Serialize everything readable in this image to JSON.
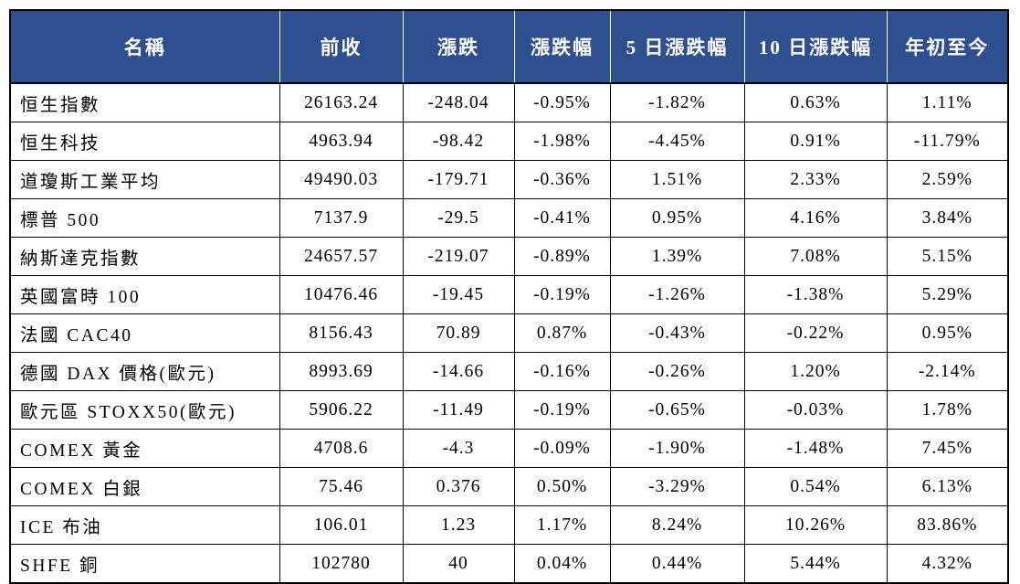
{
  "colors": {
    "header_bg": "#2F5090",
    "header_text": "#FFFFFF",
    "body_text": "#000000",
    "grid_border": "#000000",
    "header_divider": "#FFFFFF"
  },
  "table": {
    "columns": [
      {
        "key": "name",
        "label": "名稱"
      },
      {
        "key": "prev-close",
        "label": "前收"
      },
      {
        "key": "change",
        "label": "漲跌"
      },
      {
        "key": "change-pct",
        "label": "漲跌幅"
      },
      {
        "key": "pct-5d",
        "label": "5 日漲跌幅"
      },
      {
        "key": "pct-10d",
        "label": "10 日漲跌幅"
      },
      {
        "key": "ytd",
        "label": "年初至今"
      }
    ],
    "rows": [
      {
        "cells": [
          "恒生指數",
          "26163.24",
          "-248.04",
          "-0.95%",
          "-1.82%",
          "0.63%",
          "1.11%"
        ]
      },
      {
        "cells": [
          "恒生科技",
          "4963.94",
          "-98.42",
          "-1.98%",
          "-4.45%",
          "0.91%",
          "-11.79%"
        ]
      },
      {
        "cells": [
          "道瓊斯工業平均",
          "49490.03",
          "-179.71",
          "-0.36%",
          "1.51%",
          "2.33%",
          "2.59%"
        ]
      },
      {
        "cells": [
          "標普 500",
          "7137.9",
          "-29.5",
          "-0.41%",
          "0.95%",
          "4.16%",
          "3.84%"
        ]
      },
      {
        "cells": [
          "納斯達克指數",
          "24657.57",
          "-219.07",
          "-0.89%",
          "1.39%",
          "7.08%",
          "5.15%"
        ]
      },
      {
        "cells": [
          "英國富時 100",
          "10476.46",
          "-19.45",
          "-0.19%",
          "-1.26%",
          "-1.38%",
          "5.29%"
        ]
      },
      {
        "cells": [
          "法國 CAC40",
          "8156.43",
          "70.89",
          "0.87%",
          "-0.43%",
          "-0.22%",
          "0.95%"
        ]
      },
      {
        "cells": [
          "德國 DAX 價格(歐元)",
          "8993.69",
          "-14.66",
          "-0.16%",
          "-0.26%",
          "1.20%",
          "-2.14%"
        ]
      },
      {
        "cells": [
          "歐元區 STOXX50(歐元)",
          "5906.22",
          "-11.49",
          "-0.19%",
          "-0.65%",
          "-0.03%",
          "1.78%"
        ]
      },
      {
        "cells": [
          "COMEX 黃金",
          "4708.6",
          "-4.3",
          "-0.09%",
          "-1.90%",
          "-1.48%",
          "7.45%"
        ]
      },
      {
        "cells": [
          "COMEX 白銀",
          "75.46",
          "0.376",
          "0.50%",
          "-3.29%",
          "0.54%",
          "6.13%"
        ]
      },
      {
        "cells": [
          "ICE 布油",
          "106.01",
          "1.23",
          "1.17%",
          "8.24%",
          "10.26%",
          "83.86%"
        ]
      },
      {
        "cells": [
          "SHFE 銅",
          "102780",
          "40",
          "0.04%",
          "0.44%",
          "5.44%",
          "4.32%"
        ]
      }
    ]
  }
}
